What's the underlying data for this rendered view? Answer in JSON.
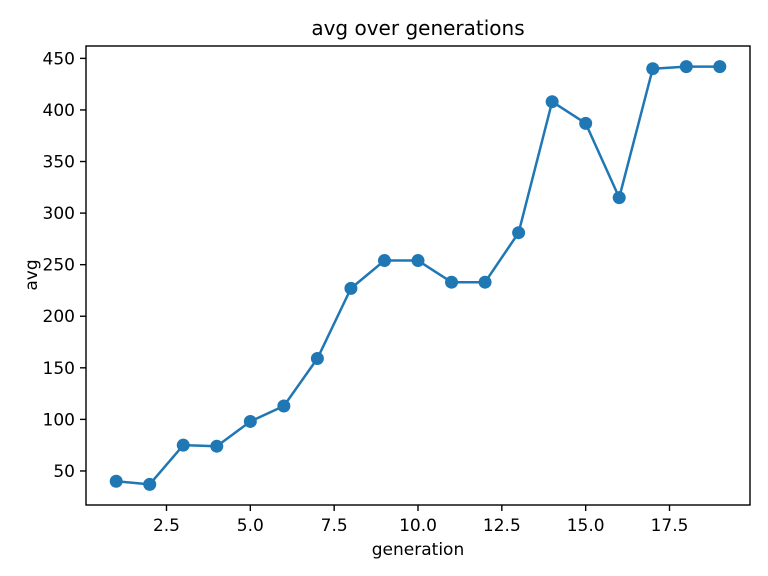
{
  "figure": {
    "background_color": "#ffffff",
    "spine_color": "#000000",
    "text_color": "#000000"
  },
  "chart_data": {
    "type": "line",
    "title": "avg over generations",
    "xlabel": "generation",
    "ylabel": "avg",
    "grid": false,
    "legend": null,
    "line_color": "#1f77b4",
    "marker": "circle",
    "x": [
      1,
      2,
      3,
      4,
      5,
      6,
      7,
      8,
      9,
      10,
      11,
      12,
      13,
      14,
      15,
      16,
      17,
      18,
      19
    ],
    "series": [
      {
        "name": "avg",
        "color": "#1f77b4",
        "values": [
          40,
          37,
          75,
          74,
          98,
          113,
          159,
          227,
          254,
          254,
          233,
          233,
          281,
          408,
          387,
          315,
          440,
          442,
          442
        ]
      }
    ],
    "xlim": [
      0.1,
      19.9
    ],
    "ylim": [
      17,
      462
    ],
    "x_ticks": [
      2.5,
      5.0,
      7.5,
      10.0,
      12.5,
      15.0,
      17.5
    ],
    "x_tick_labels": [
      "2.5",
      "5.0",
      "7.5",
      "10.0",
      "12.5",
      "15.0",
      "17.5"
    ],
    "y_ticks": [
      50,
      100,
      150,
      200,
      250,
      300,
      350,
      400,
      450
    ],
    "y_tick_labels": [
      "50",
      "100",
      "150",
      "200",
      "250",
      "300",
      "350",
      "400",
      "450"
    ]
  }
}
